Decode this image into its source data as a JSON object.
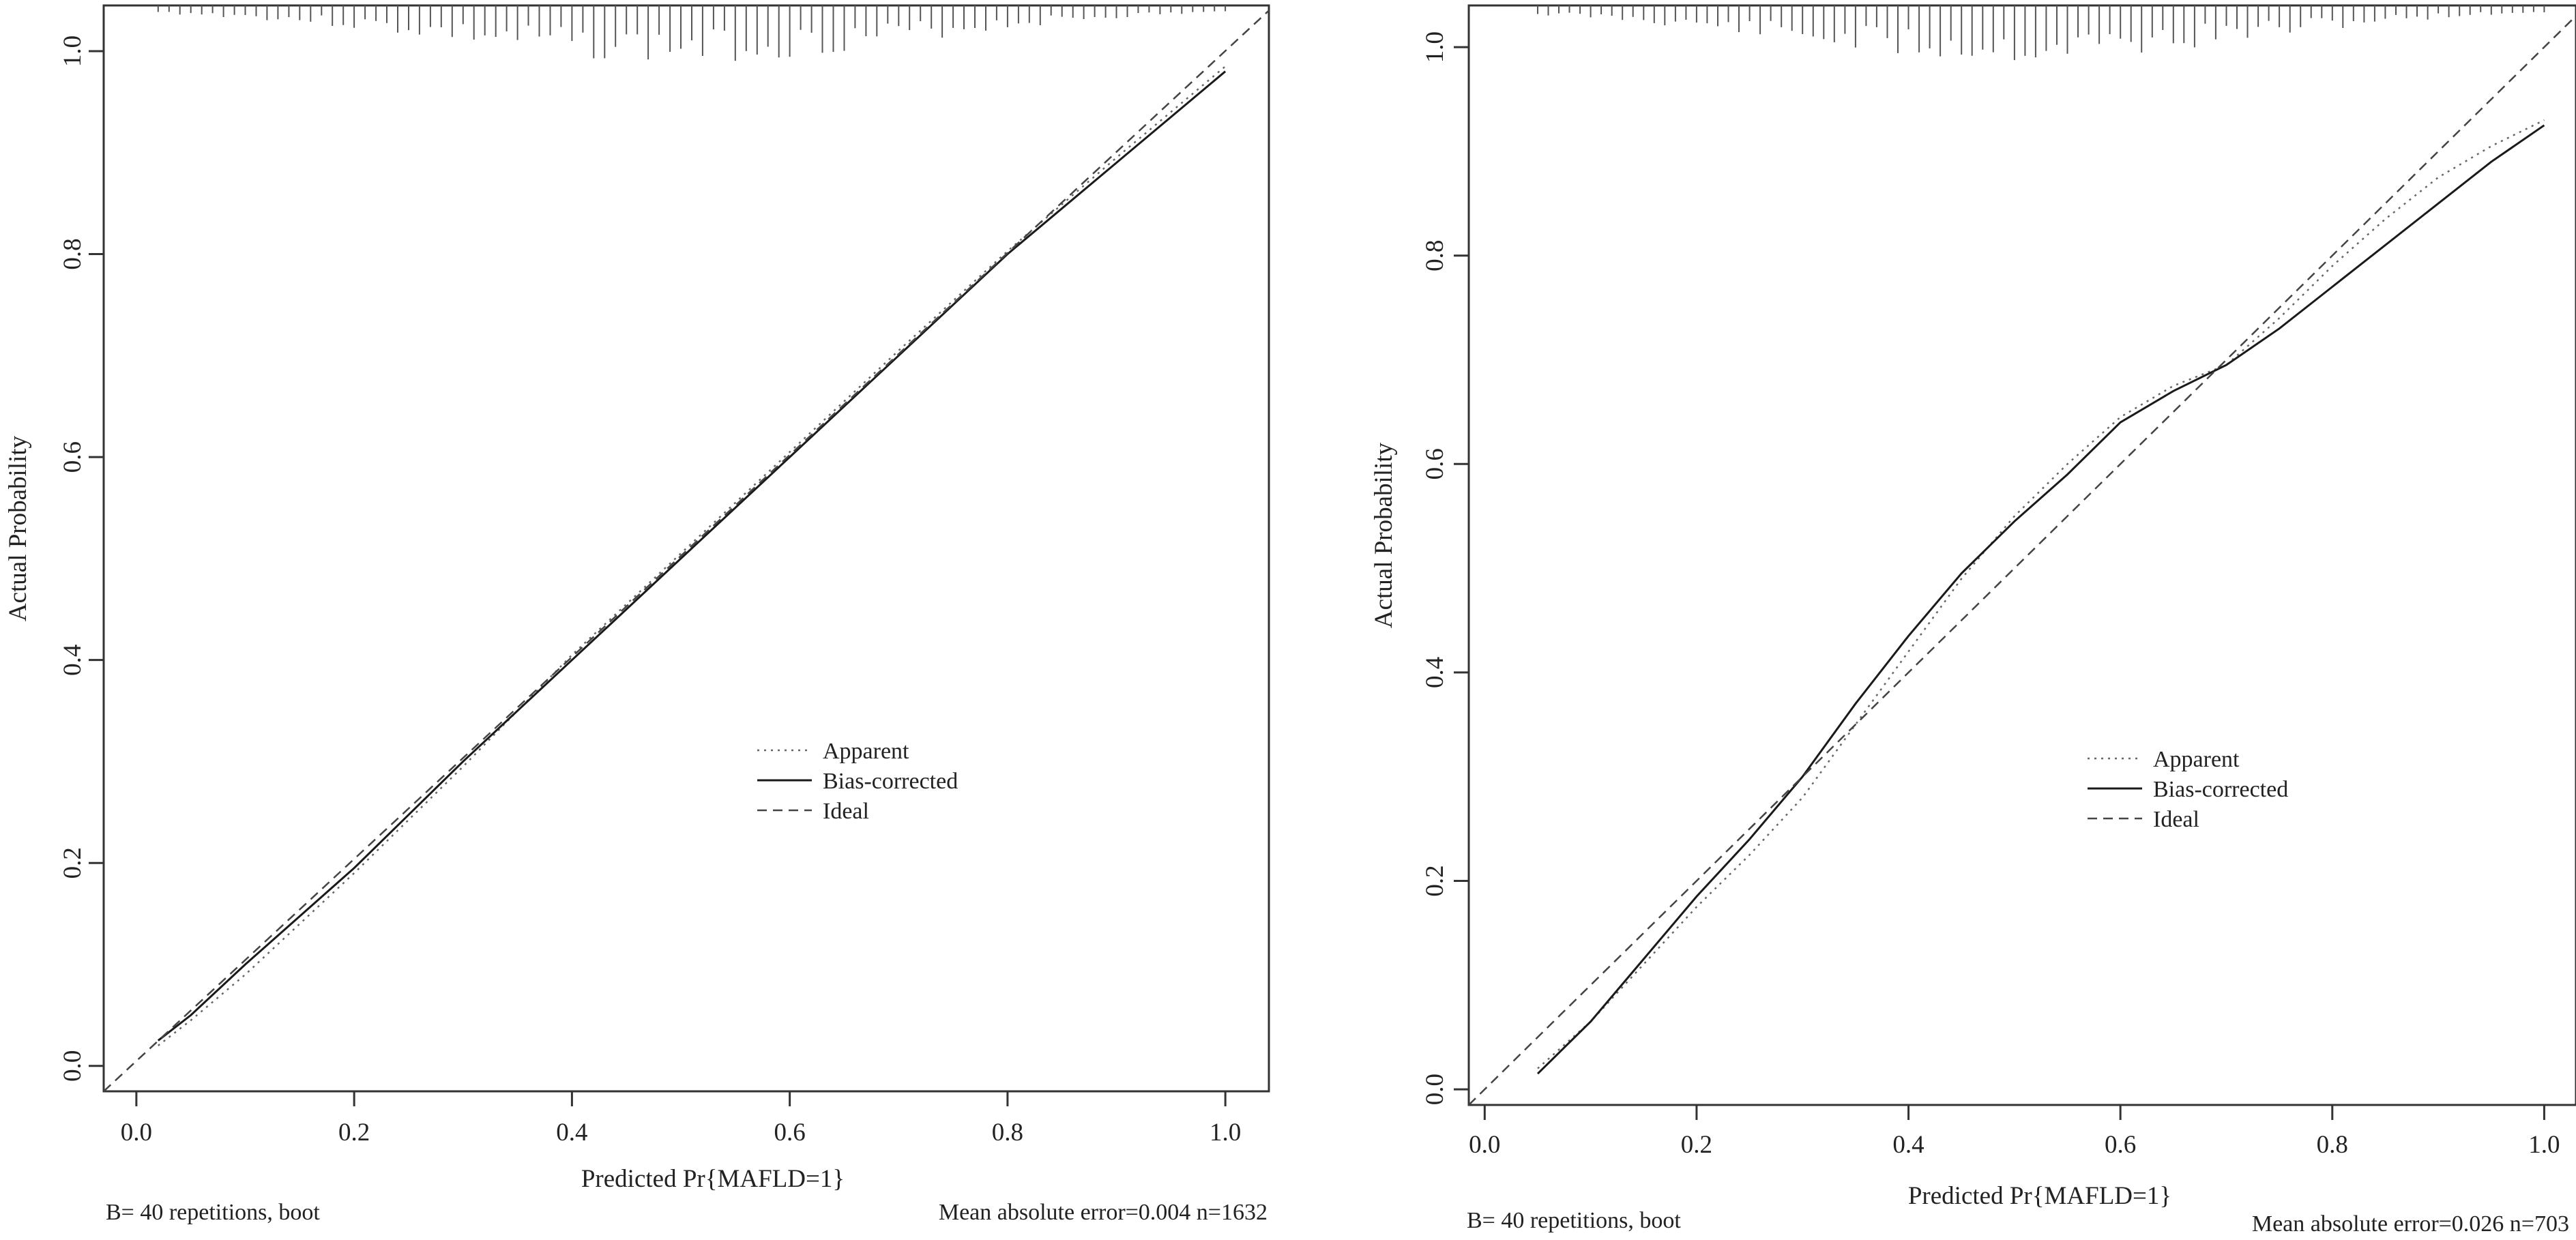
{
  "chart_data": [
    {
      "type": "line",
      "xlabel": "Predicted Pr{MAFLD=1}",
      "ylabel": "Actual Probability",
      "xlim": [
        -0.03,
        1.04
      ],
      "ylim": [
        -0.025,
        1.045
      ],
      "xticks": [
        "0.0",
        "0.2",
        "0.4",
        "0.6",
        "0.8",
        "1.0"
      ],
      "yticks": [
        "0.0",
        "0.2",
        "0.4",
        "0.6",
        "0.8",
        "1.0"
      ],
      "grid": false,
      "legend_position": "center-right",
      "legend": [
        {
          "label": "Apparent",
          "style": "dotted"
        },
        {
          "label": "Bias-corrected",
          "style": "solid"
        },
        {
          "label": "Ideal",
          "style": "dashed"
        }
      ],
      "footer_left": "B= 40 repetitions, boot",
      "footer_right": "Mean absolute error=0.004 n=1632",
      "series": [
        {
          "name": "Apparent",
          "style": "dotted",
          "x": [
            0.02,
            0.05,
            0.1,
            0.2,
            0.3,
            0.4,
            0.5,
            0.6,
            0.7,
            0.8,
            0.9,
            1.0
          ],
          "y": [
            0.02,
            0.045,
            0.09,
            0.19,
            0.295,
            0.405,
            0.505,
            0.605,
            0.705,
            0.803,
            0.895,
            0.985
          ]
        },
        {
          "name": "Bias-corrected",
          "style": "solid",
          "x": [
            0.02,
            0.05,
            0.1,
            0.2,
            0.3,
            0.4,
            0.5,
            0.6,
            0.7,
            0.8,
            0.9,
            1.0
          ],
          "y": [
            0.025,
            0.05,
            0.1,
            0.195,
            0.3,
            0.4,
            0.5,
            0.6,
            0.7,
            0.8,
            0.89,
            0.98
          ]
        },
        {
          "name": "Ideal",
          "style": "dashed",
          "x": [
            -0.03,
            1.04
          ],
          "y": [
            -0.03,
            1.04
          ]
        }
      ],
      "rug": [
        0.02,
        0.03,
        0.04,
        0.05,
        0.06,
        0.07,
        0.08,
        0.09,
        0.1,
        0.11,
        0.12,
        0.13,
        0.14,
        0.15,
        0.16,
        0.17,
        0.18,
        0.19,
        0.2,
        0.21,
        0.22,
        0.23,
        0.24,
        0.25,
        0.26,
        0.27,
        0.28,
        0.29,
        0.3,
        0.31,
        0.32,
        0.33,
        0.34,
        0.35,
        0.36,
        0.37,
        0.38,
        0.39,
        0.4,
        0.41,
        0.42,
        0.43,
        0.44,
        0.45,
        0.46,
        0.47,
        0.48,
        0.49,
        0.5,
        0.51,
        0.52,
        0.53,
        0.54,
        0.55,
        0.56,
        0.57,
        0.58,
        0.59,
        0.6,
        0.61,
        0.62,
        0.63,
        0.64,
        0.65,
        0.66,
        0.67,
        0.68,
        0.69,
        0.7,
        0.71,
        0.72,
        0.73,
        0.74,
        0.75,
        0.76,
        0.77,
        0.78,
        0.79,
        0.8,
        0.81,
        0.82,
        0.83,
        0.84,
        0.85,
        0.86,
        0.87,
        0.88,
        0.89,
        0.9,
        0.91,
        0.92,
        0.93,
        0.94,
        0.95,
        0.96,
        0.97,
        0.98,
        0.99,
        1.0
      ]
    },
    {
      "type": "line",
      "xlabel": "Predicted Pr{MAFLD=1}",
      "ylabel": "Actual Probability",
      "xlim": [
        -0.015,
        1.03
      ],
      "ylim": [
        -0.015,
        1.04
      ],
      "xticks": [
        "0.0",
        "0.2",
        "0.4",
        "0.6",
        "0.8",
        "1.0"
      ],
      "yticks": [
        "0.0",
        "0.2",
        "0.4",
        "0.6",
        "0.8",
        "1.0"
      ],
      "grid": false,
      "legend_position": "center-right",
      "legend": [
        {
          "label": "Apparent",
          "style": "dotted"
        },
        {
          "label": "Bias-corrected",
          "style": "solid"
        },
        {
          "label": "Ideal",
          "style": "dashed"
        }
      ],
      "footer_left": "B= 40 repetitions, boot",
      "footer_right": "Mean absolute error=0.026 n=703",
      "series": [
        {
          "name": "Apparent",
          "style": "dotted",
          "x": [
            0.05,
            0.1,
            0.15,
            0.2,
            0.25,
            0.3,
            0.35,
            0.4,
            0.45,
            0.5,
            0.55,
            0.6,
            0.65,
            0.7,
            0.75,
            0.8,
            0.85,
            0.9,
            0.95,
            1.0
          ],
          "y": [
            0.02,
            0.065,
            0.12,
            0.175,
            0.225,
            0.28,
            0.35,
            0.42,
            0.49,
            0.55,
            0.6,
            0.645,
            0.675,
            0.695,
            0.74,
            0.79,
            0.835,
            0.875,
            0.905,
            0.93
          ]
        },
        {
          "name": "Bias-corrected",
          "style": "solid",
          "x": [
            0.05,
            0.1,
            0.15,
            0.2,
            0.25,
            0.3,
            0.35,
            0.4,
            0.45,
            0.5,
            0.55,
            0.6,
            0.65,
            0.7,
            0.75,
            0.8,
            0.85,
            0.9,
            0.95,
            1.0
          ],
          "y": [
            0.015,
            0.065,
            0.125,
            0.185,
            0.24,
            0.3,
            0.37,
            0.435,
            0.495,
            0.545,
            0.59,
            0.64,
            0.67,
            0.695,
            0.73,
            0.77,
            0.81,
            0.85,
            0.89,
            0.925
          ]
        },
        {
          "name": "Ideal",
          "style": "dashed",
          "x": [
            -0.015,
            1.03
          ],
          "y": [
            -0.015,
            1.03
          ]
        }
      ],
      "rug": [
        0.05,
        0.06,
        0.07,
        0.08,
        0.09,
        0.1,
        0.11,
        0.12,
        0.13,
        0.14,
        0.15,
        0.16,
        0.17,
        0.18,
        0.19,
        0.2,
        0.21,
        0.22,
        0.23,
        0.24,
        0.25,
        0.26,
        0.27,
        0.28,
        0.29,
        0.3,
        0.31,
        0.32,
        0.33,
        0.34,
        0.35,
        0.36,
        0.37,
        0.38,
        0.39,
        0.4,
        0.41,
        0.42,
        0.43,
        0.44,
        0.45,
        0.46,
        0.47,
        0.48,
        0.49,
        0.5,
        0.51,
        0.52,
        0.53,
        0.54,
        0.55,
        0.56,
        0.57,
        0.58,
        0.59,
        0.6,
        0.61,
        0.62,
        0.63,
        0.64,
        0.65,
        0.66,
        0.67,
        0.68,
        0.69,
        0.7,
        0.71,
        0.72,
        0.73,
        0.74,
        0.75,
        0.76,
        0.77,
        0.78,
        0.79,
        0.8,
        0.81,
        0.82,
        0.83,
        0.84,
        0.85,
        0.86,
        0.87,
        0.88,
        0.89,
        0.9,
        0.91,
        0.92,
        0.93,
        0.94,
        0.95,
        0.96,
        0.97,
        0.98,
        0.99,
        1.0
      ]
    }
  ]
}
